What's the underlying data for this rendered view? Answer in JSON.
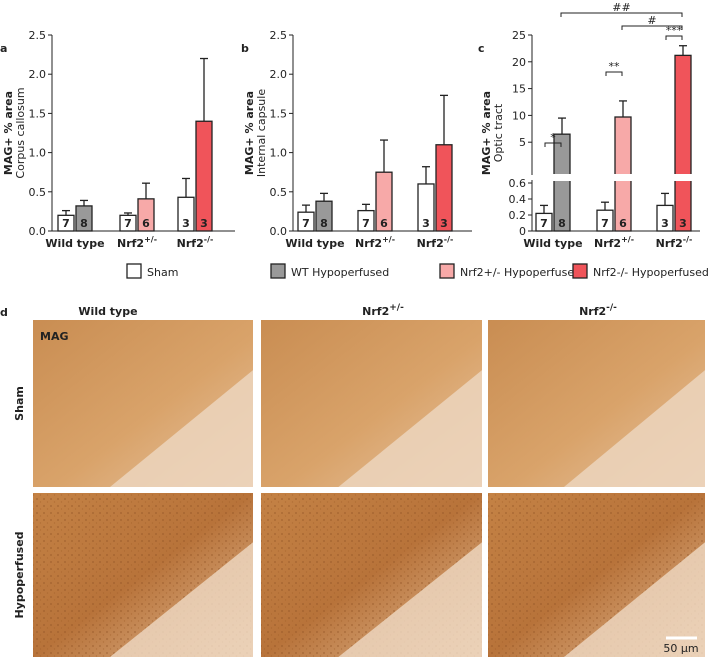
{
  "chart_data": [
    {
      "type": "bar",
      "panel": "a",
      "y_label": "MAG+ % area",
      "y_sublabel": "Corpus callosum",
      "categories": [
        "Wild type",
        "Nrf2",
        "Nrf2"
      ],
      "category_superscripts": [
        null,
        "+/-",
        "-/-"
      ],
      "ylim": [
        0,
        2.5
      ],
      "yticks": [
        {
          "value": 0,
          "label": "0.0"
        },
        0.5,
        {
          "value": 1,
          "label": "1.0"
        },
        1.5,
        {
          "value": 2,
          "label": "2.0"
        },
        2.5
      ],
      "series": [
        {
          "colors": [
            "#ffffff",
            "#ffffff",
            "#ffffff"
          ],
          "values": [
            0.2,
            0.2,
            0.43
          ],
          "errors": [
            0.06,
            0.03,
            0.24
          ],
          "n_labels": [
            7,
            7,
            3
          ]
        },
        {
          "colors": [
            "#999999",
            "#f7a9a8",
            "#f0545a"
          ],
          "values": [
            0.32,
            0.41,
            1.4
          ],
          "errors": [
            0.07,
            0.2,
            0.8
          ],
          "n_labels": [
            8,
            6,
            3
          ]
        }
      ]
    },
    {
      "type": "bar",
      "panel": "b",
      "y_label": "MAG+ % area",
      "y_sublabel": "Internal capsule",
      "categories": [
        "Wild type",
        "Nrf2",
        "Nrf2"
      ],
      "category_superscripts": [
        null,
        "+/-",
        "-/-"
      ],
      "ylim": [
        0,
        2.5
      ],
      "yticks": [
        {
          "value": 0,
          "label": "0.0"
        },
        0.5,
        {
          "value": 1,
          "label": "1.0"
        },
        1.5,
        {
          "value": 2,
          "label": "2.0"
        },
        2.5
      ],
      "series": [
        {
          "colors": [
            "#ffffff",
            "#ffffff",
            "#ffffff"
          ],
          "values": [
            0.24,
            0.26,
            0.6
          ],
          "errors": [
            0.09,
            0.08,
            0.22
          ],
          "n_labels": [
            7,
            7,
            3
          ]
        },
        {
          "colors": [
            "#999999",
            "#f7a9a8",
            "#f0545a"
          ],
          "values": [
            0.38,
            0.75,
            1.1
          ],
          "errors": [
            0.1,
            0.41,
            0.63
          ],
          "n_labels": [
            8,
            6,
            3
          ]
        }
      ]
    },
    {
      "type": "broken-bar",
      "panel": "c",
      "y_label": "MAG+ % area",
      "y_sublabel": "Optic tract",
      "categories": [
        "Wild type",
        "Nrf2",
        "Nrf2"
      ],
      "category_superscripts": [
        null,
        "+/-",
        "-/-"
      ],
      "ylim": [
        0,
        0.6
      ],
      "yticks": [
        0,
        0.2,
        0.4,
        0.6
      ],
      "ylim_upper": [
        0,
        25
      ],
      "yticks_upper": [
        5,
        10,
        15,
        20,
        25
      ],
      "series": [
        {
          "colors": [
            "#ffffff",
            "#ffffff",
            "#ffffff"
          ],
          "values": [
            0.22,
            0.26,
            0.32
          ],
          "errors": [
            0.1,
            0.1,
            0.15
          ],
          "n_labels": [
            7,
            7,
            3
          ]
        },
        {
          "colors": [
            "#999999",
            "#f7a9a8",
            "#f0545a"
          ],
          "values": [
            6.5,
            9.7,
            21.2
          ],
          "errors": [
            3,
            3,
            1.8
          ],
          "n_labels": [
            8,
            6,
            3
          ]
        }
      ],
      "annotations": [
        "*",
        "**",
        "***",
        "#",
        "##"
      ]
    }
  ],
  "legend": [
    {
      "label": "Sham",
      "color": "#ffffff"
    },
    {
      "label": "WT Hypoperfused",
      "color": "#999999"
    },
    {
      "label": "Nrf2+/- Hypoperfused",
      "color": "#f7a9a8"
    },
    {
      "label": "Nrf2-/- Hypoperfused",
      "color": "#f0545a"
    }
  ],
  "micrographs": {
    "panel": "d",
    "columns": [
      "Wild type",
      "Nrf2",
      "Nrf2"
    ],
    "column_superscripts": [
      null,
      "+/-",
      "-/-"
    ],
    "rows": [
      "Sham",
      "Hypoperfused"
    ],
    "stain": "MAG",
    "scale_bar": "50 µm"
  }
}
